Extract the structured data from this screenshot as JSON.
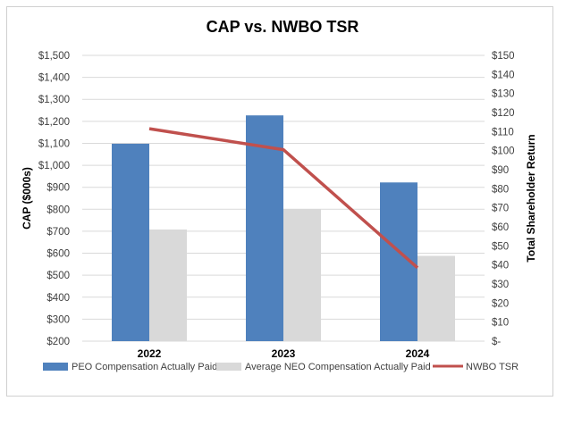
{
  "chart_data": {
    "type": "bar",
    "title": "CAP vs. NWBO TSR",
    "categories": [
      "2022",
      "2023",
      "2024"
    ],
    "ylabel": "CAP ($000s)",
    "y2label": "Total Shareholder Return",
    "ylim": [
      200,
      1500
    ],
    "y2lim": [
      0,
      150
    ],
    "y_ticks": [
      "$200",
      "$300",
      "$400",
      "$500",
      "$600",
      "$700",
      "$800",
      "$900",
      "$1,000",
      "$1,100",
      "$1,200",
      "$1,300",
      "$1,400",
      "$1,500"
    ],
    "y2_ticks": [
      "$-",
      "$10",
      "$20",
      "$30",
      "$40",
      "$50",
      "$60",
      "$70",
      "$80",
      "$90",
      "$100",
      "$110",
      "$120",
      "$130",
      "$140",
      "$150"
    ],
    "grid": true,
    "legend_position": "bottom",
    "series": [
      {
        "name": "PEO Compensation Actually Paid",
        "type": "bar",
        "axis": "left",
        "color": "#4f81bd",
        "values": [
          1098,
          1227,
          922
        ]
      },
      {
        "name": "Average NEO Compensation Actually Paid",
        "type": "bar",
        "axis": "left",
        "color": "#d9d9d9",
        "values": [
          708,
          800,
          588
        ]
      },
      {
        "name": "NWBO TSR",
        "type": "line",
        "axis": "right",
        "color": "#c0504d",
        "values": [
          111.5,
          100.5,
          38.5
        ]
      }
    ]
  }
}
